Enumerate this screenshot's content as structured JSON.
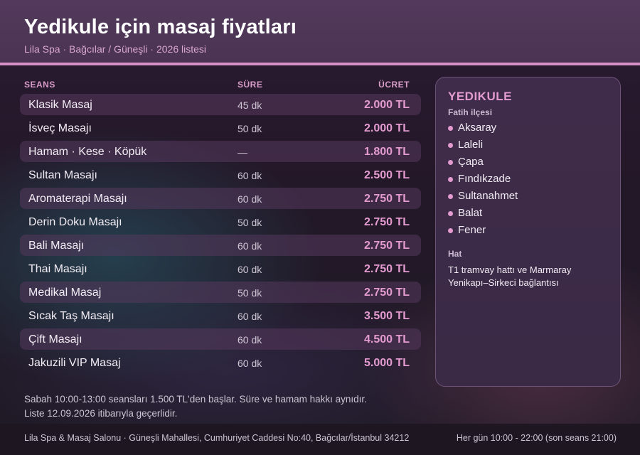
{
  "header": {
    "title": "Yedikule için masaj fiyatları",
    "subtitle": "Lila Spa · Bağcılar / Güneşli · 2026 listesi"
  },
  "table": {
    "columns": {
      "session": "SEANS",
      "duration": "SÜRE",
      "price": "ÜCRET"
    },
    "rows": [
      {
        "name": "Klasik Masaj",
        "duration": "45 dk",
        "price": "2.000 TL"
      },
      {
        "name": "İsveç Masajı",
        "duration": "50 dk",
        "price": "2.000 TL"
      },
      {
        "name": "Hamam · Kese · Köpük",
        "duration": "—",
        "price": "1.800 TL"
      },
      {
        "name": "Sultan Masajı",
        "duration": "60 dk",
        "price": "2.500 TL"
      },
      {
        "name": "Aromaterapi Masajı",
        "duration": "60 dk",
        "price": "2.750 TL"
      },
      {
        "name": "Derin Doku Masajı",
        "duration": "50 dk",
        "price": "2.750 TL"
      },
      {
        "name": "Bali Masajı",
        "duration": "60 dk",
        "price": "2.750 TL"
      },
      {
        "name": "Thai Masajı",
        "duration": "60 dk",
        "price": "2.750 TL"
      },
      {
        "name": "Medikal Masaj",
        "duration": "50 dk",
        "price": "2.750 TL"
      },
      {
        "name": "Sıcak Taş Masajı",
        "duration": "60 dk",
        "price": "3.500 TL"
      },
      {
        "name": "Çift Masajı",
        "duration": "60 dk",
        "price": "4.500 TL"
      },
      {
        "name": "Jakuzili VIP Masaj",
        "duration": "60 dk",
        "price": "5.000 TL"
      }
    ]
  },
  "sidebar": {
    "area": "YEDIKULE",
    "district": "Fatih ilçesi",
    "neighborhoods": [
      "Aksaray",
      "Laleli",
      "Çapa",
      "Fındıkzade",
      "Sultanahmet",
      "Balat",
      "Fener"
    ],
    "transit_label": "Hat",
    "transit_text": "T1 tramvay hattı ve Marmaray Yenikapı–Sirkeci bağlantısı"
  },
  "notes": {
    "line1": "Sabah 10:00-13:00 seansları 1.500 TL'den başlar. Süre ve hamam hakkı aynıdır.",
    "line2": "Liste 12.09.2026 itibarıyla geçerlidir."
  },
  "footer": {
    "address": "Lila Spa & Masaj Salonu · Güneşli Mahallesi, Cumhuriyet Caddesi No:40, Bağcılar/İstanbul 34212",
    "hours": "Her gün 10:00 - 22:00 (son seans 21:00)"
  },
  "colors": {
    "accent": "#e49bd0",
    "header_bg": "#4a3353",
    "header_rule": "#d88fc6"
  }
}
